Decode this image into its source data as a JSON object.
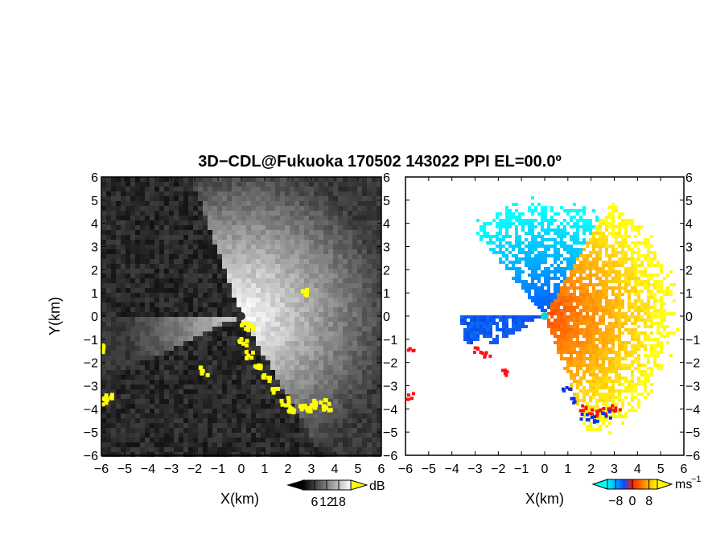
{
  "chart_data": {
    "title": "3D−CDL@Fukuoka 170502 143022 PPI EL=00.0º",
    "panels": [
      {
        "id": "snr",
        "type": "heatmap",
        "xlabel": "X(km)",
        "ylabel": "Y(km)",
        "xlim": [
          -6,
          6
        ],
        "ylim": [
          -6,
          6
        ],
        "xticks": [
          "−6",
          "−5",
          "−4",
          "−3",
          "−2",
          "−1",
          "0",
          "1",
          "2",
          "3",
          "4",
          "5",
          "6"
        ],
        "yticks": [
          "−6",
          "−5",
          "−4",
          "−3",
          "−2",
          "−1",
          "0",
          "1",
          "2",
          "3",
          "4",
          "5",
          "6"
        ],
        "colorbar": {
          "unit": "dB",
          "ticks": [
            6,
            12,
            18
          ],
          "tick_labels": [
            "6",
            "12",
            "18"
          ],
          "range": [
            0,
            24
          ],
          "colors": [
            "#000000",
            "#ffffff"
          ],
          "over_color": "#ffff00"
        },
        "radar_center": [
          0,
          0
        ],
        "bright_sector_deg": [
          -60,
          110
        ],
        "dim_sector_deg": [
          180,
          205
        ],
        "max_range_km": 6,
        "mask_color": "#ffff00"
      },
      {
        "id": "doppler",
        "type": "heatmap",
        "xlabel": "X(km)",
        "xlim": [
          -6,
          6
        ],
        "ylim": [
          -6,
          6
        ],
        "xticks": [
          "−6",
          "−5",
          "−4",
          "−3",
          "−2",
          "−1",
          "0",
          "1",
          "2",
          "3",
          "4",
          "5",
          "6"
        ],
        "yticks": [
          "−6",
          "−5",
          "−4",
          "−3",
          "−2",
          "−1",
          "0",
          "1",
          "2",
          "3",
          "4",
          "5",
          "6"
        ],
        "colorbar": {
          "unit": "ms",
          "unit_exponent": "−1",
          "ticks": [
            -8,
            0,
            8
          ],
          "tick_labels": [
            "−8",
            "0",
            "8"
          ],
          "range": [
            -12,
            12
          ],
          "colors": [
            "#00ffff",
            "#0050ff",
            "#ff2000",
            "#ffff00"
          ]
        },
        "radar_center": [
          0,
          0
        ],
        "approaching_color": "#1050f0",
        "receding_color": "#ff7000"
      }
    ]
  }
}
